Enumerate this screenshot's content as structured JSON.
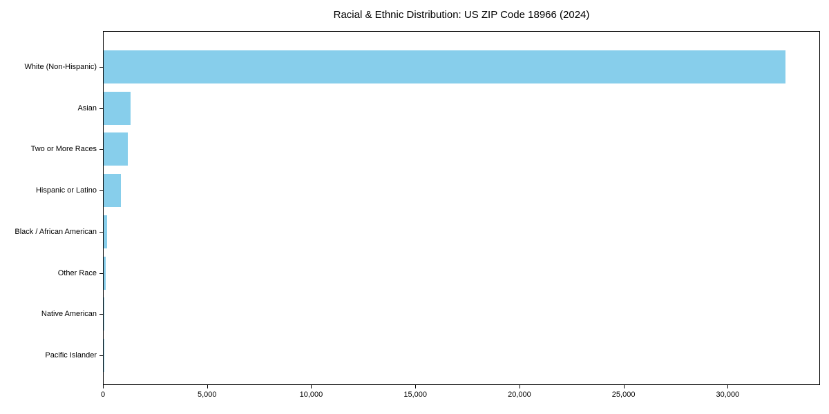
{
  "chart_data": {
    "type": "bar",
    "orientation": "horizontal",
    "title": "Racial & Ethnic Distribution: US ZIP Code 18966 (2024)",
    "xlabel": "",
    "ylabel": "",
    "categories": [
      "White (Non-Hispanic)",
      "Asian",
      "Two or More Races",
      "Hispanic or Latino",
      "Black / African American",
      "Other Race",
      "Native American",
      "Pacific Islander"
    ],
    "values": [
      32750,
      1280,
      1160,
      845,
      180,
      110,
      15,
      5
    ],
    "xlim": [
      0,
      34400
    ],
    "x_ticks": [
      {
        "value": 0,
        "label": "0"
      },
      {
        "value": 5000,
        "label": "5,000"
      },
      {
        "value": 10000,
        "label": "10,000"
      },
      {
        "value": 15000,
        "label": "15,000"
      },
      {
        "value": 20000,
        "label": "20,000"
      },
      {
        "value": 25000,
        "label": "25,000"
      },
      {
        "value": 30000,
        "label": "30,000"
      }
    ],
    "bar_color": "#87CEEB",
    "background_color": "#FFFFFF",
    "axis_color": "#000000",
    "text_color": "#000000",
    "grid": false,
    "legend": null
  }
}
